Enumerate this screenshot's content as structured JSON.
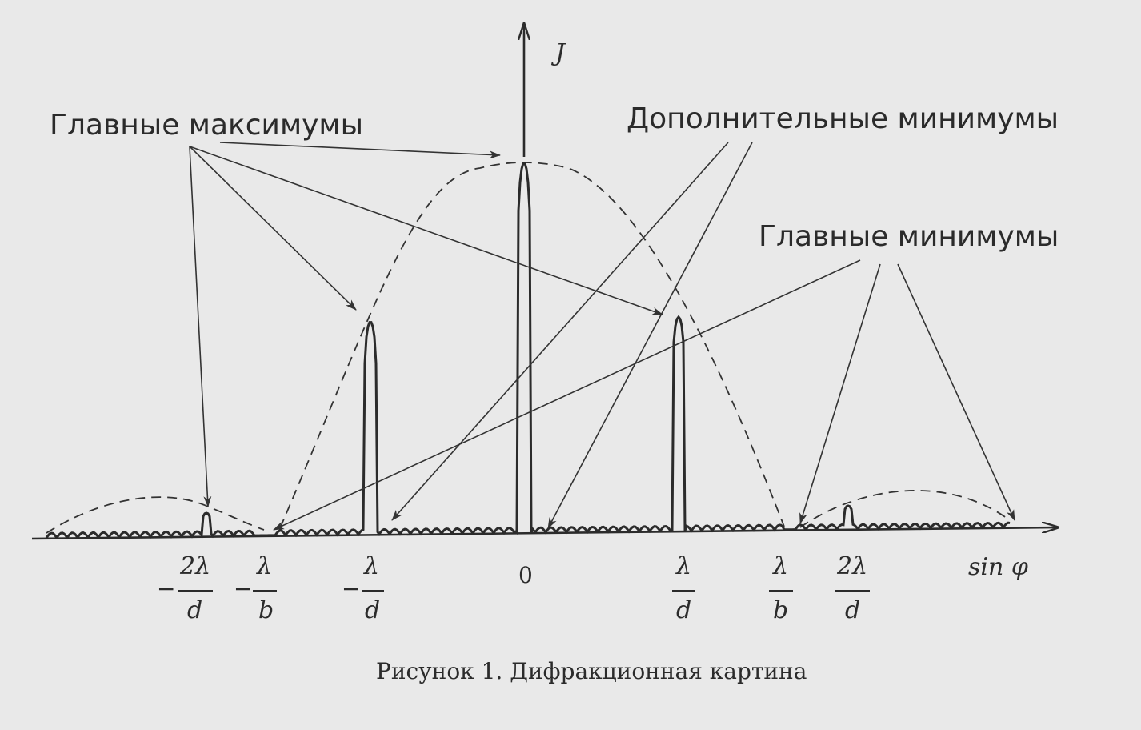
{
  "axes": {
    "y_label": "J",
    "x_label": "sin φ"
  },
  "annotations": {
    "main_maxima": "Главные максимумы",
    "additional_minima": "Дополнительные минимумы",
    "main_minima": "Главные минимумы"
  },
  "ticks": {
    "origin": "0",
    "neg_2lambda_d": {
      "sign": "−",
      "num": "2λ",
      "den": "d"
    },
    "neg_lambda_b": {
      "sign": "−",
      "num": "λ",
      "den": "b"
    },
    "neg_lambda_d": {
      "sign": "−",
      "num": "λ",
      "den": "d"
    },
    "pos_lambda_d": {
      "num": "λ",
      "den": "d"
    },
    "pos_lambda_b": {
      "num": "λ",
      "den": "b"
    },
    "pos_2lambda_d": {
      "num": "2λ",
      "den": "d"
    }
  },
  "caption": "Рисунок 1. Дифракционная картина"
}
